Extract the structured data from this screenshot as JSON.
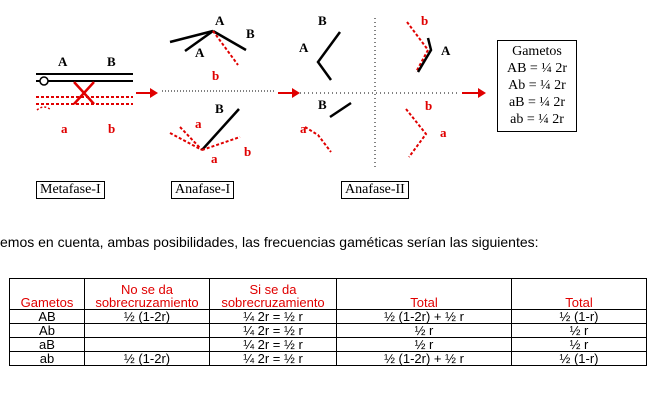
{
  "diagram": {
    "labels": {
      "A": "A",
      "B": "B",
      "a": "a",
      "b": "b"
    },
    "stage_labels": [
      "Metafase-I",
      "Anafase-I",
      "Anafase-II"
    ],
    "gametos_box": {
      "title": "Gametos",
      "lines": [
        "AB = ¼ 2r",
        "Ab = ¼ 2r",
        "aB = ¼ 2r",
        "ab = ¼ 2r"
      ]
    },
    "colors": {
      "black": "#000000",
      "red": "#e00000"
    }
  },
  "caption": "emos en cuenta, ambas posibilidades, las frecuencias gaméticas serían las siguientes:",
  "table": {
    "headers": [
      "Gametos",
      "No se da sobrecruzamiento",
      "Si se da sobrecruzamiento",
      "Total",
      "Total"
    ],
    "header_lines": [
      [
        "Gametos"
      ],
      [
        "No se da",
        "sobrecruzamiento"
      ],
      [
        "Si se da",
        "sobrecruzamiento"
      ],
      [
        "Total"
      ],
      [
        "Total"
      ]
    ],
    "rows": [
      [
        "AB",
        "½ (1-2r)",
        "¼ 2r = ½ r",
        "½ (1-2r) + ½ r",
        "½ (1-r)"
      ],
      [
        "Ab",
        "",
        "¼ 2r = ½ r",
        "½ r",
        "½ r"
      ],
      [
        "aB",
        "",
        "¼ 2r = ½ r",
        "½ r",
        "½ r"
      ],
      [
        "ab",
        "½ (1-2r)",
        "¼ 2r = ½ r",
        "½ (1-2r) + ½ r",
        "½ (1-r)"
      ]
    ]
  }
}
